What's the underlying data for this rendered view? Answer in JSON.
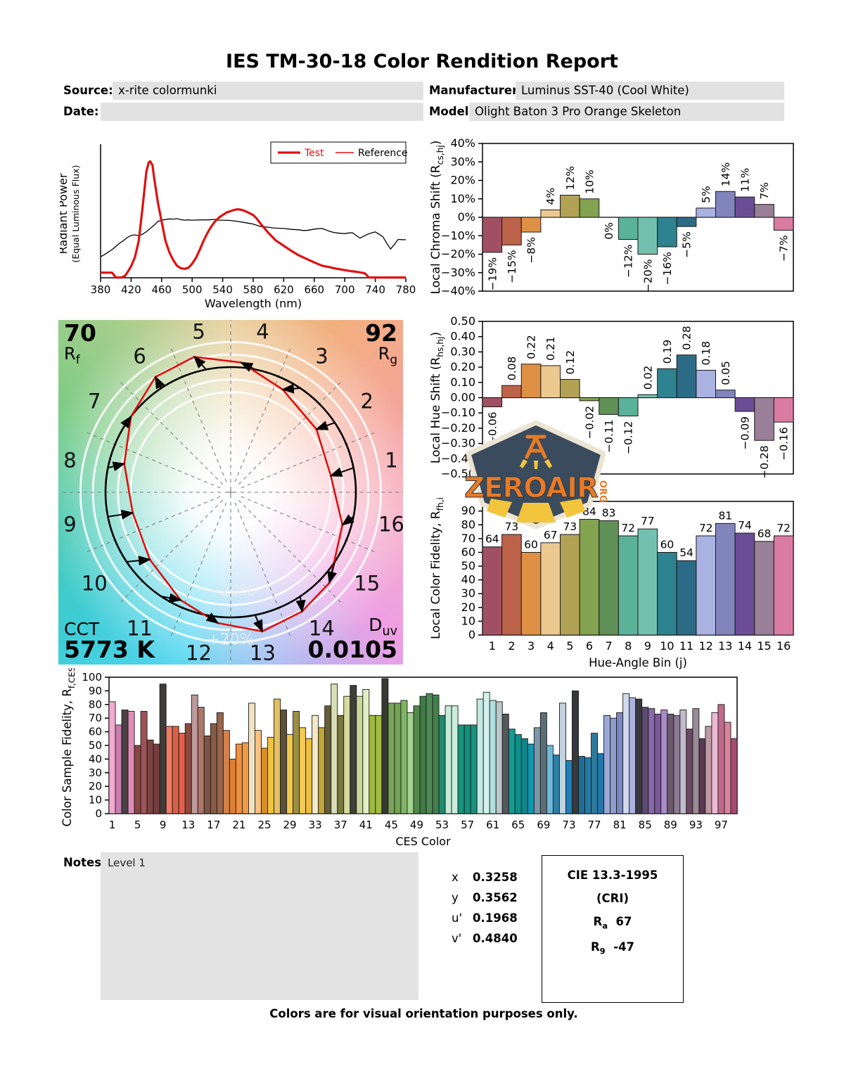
{
  "header": {
    "title": "IES TM-30-18 Color Rendition Report",
    "source_label": "Source:",
    "source_value": "x-rite colormunki",
    "date_label": "Date:",
    "date_value": "",
    "manufacturer_label": "Manufacturer:",
    "manufacturer_value": "Luminus SST-40 (Cool White)",
    "model_label": "Model:",
    "model_value": "Olight Baton 3 Pro Orange Skeleton"
  },
  "chart_data": {
    "spd": {
      "type": "line",
      "xlabel": "Wavelength (nm)",
      "ylabel": "Radiant Power",
      "ylabel_sub": "(Equal Luminous Flux)",
      "xlim": [
        380,
        780
      ],
      "ylim": [
        0,
        1
      ],
      "x_ticks": [
        380,
        420,
        460,
        500,
        540,
        580,
        620,
        660,
        700,
        740,
        780
      ],
      "legend": [
        {
          "name": "Test",
          "line_color": "#e01010",
          "line_width": 3.2,
          "text_color": "#e01010"
        },
        {
          "name": "Reference",
          "line_color": "#e01010",
          "line_width": 1.6,
          "text_color": "#000000"
        }
      ],
      "series": [
        {
          "name": "Test",
          "color": "#e01010",
          "width": 3.2,
          "points": [
            [
              380,
              0.04
            ],
            [
              395,
              0.04
            ],
            [
              400,
              0.002
            ],
            [
              407,
              0.002
            ],
            [
              412,
              0.015
            ],
            [
              416,
              0.05
            ],
            [
              420,
              0.09
            ],
            [
              425,
              0.16
            ],
            [
              430,
              0.29
            ],
            [
              435,
              0.55
            ],
            [
              440,
              0.83
            ],
            [
              443,
              0.9
            ],
            [
              445,
              0.91
            ],
            [
              448,
              0.88
            ],
            [
              450,
              0.79
            ],
            [
              455,
              0.59
            ],
            [
              460,
              0.44
            ],
            [
              465,
              0.29
            ],
            [
              470,
              0.2
            ],
            [
              475,
              0.14
            ],
            [
              480,
              0.095
            ],
            [
              485,
              0.075
            ],
            [
              490,
              0.07
            ],
            [
              495,
              0.078
            ],
            [
              500,
              0.11
            ],
            [
              505,
              0.155
            ],
            [
              510,
              0.22
            ],
            [
              515,
              0.29
            ],
            [
              520,
              0.35
            ],
            [
              525,
              0.4
            ],
            [
              530,
              0.44
            ],
            [
              535,
              0.47
            ],
            [
              540,
              0.49
            ],
            [
              545,
              0.51
            ],
            [
              550,
              0.52
            ],
            [
              555,
              0.53
            ],
            [
              560,
              0.535
            ],
            [
              565,
              0.53
            ],
            [
              570,
              0.52
            ],
            [
              575,
              0.505
            ],
            [
              580,
              0.49
            ],
            [
              585,
              0.46
            ],
            [
              590,
              0.42
            ],
            [
              595,
              0.385
            ],
            [
              600,
              0.35
            ],
            [
              610,
              0.29
            ],
            [
              620,
              0.25
            ],
            [
              630,
              0.21
            ],
            [
              640,
              0.175
            ],
            [
              650,
              0.147
            ],
            [
              660,
              0.12
            ],
            [
              670,
              0.095
            ],
            [
              680,
              0.083
            ],
            [
              690,
              0.07
            ],
            [
              700,
              0.06
            ],
            [
              710,
              0.05
            ],
            [
              715,
              0.047
            ],
            [
              720,
              0.042
            ],
            [
              726,
              0.036
            ],
            [
              729,
              0.02
            ],
            [
              731,
              0.003
            ],
            [
              740,
              0.002
            ],
            [
              780,
              0.002
            ]
          ]
        },
        {
          "name": "Reference",
          "color": "#000000",
          "width": 1.3,
          "points": [
            [
              380,
              0.165
            ],
            [
              385,
              0.18
            ],
            [
              390,
              0.2
            ],
            [
              395,
              0.22
            ],
            [
              400,
              0.245
            ],
            [
              405,
              0.27
            ],
            [
              410,
              0.29
            ],
            [
              415,
              0.315
            ],
            [
              420,
              0.33
            ],
            [
              425,
              0.335
            ],
            [
              430,
              0.328
            ],
            [
              435,
              0.34
            ],
            [
              440,
              0.36
            ],
            [
              445,
              0.385
            ],
            [
              450,
              0.41
            ],
            [
              455,
              0.44
            ],
            [
              460,
              0.45
            ],
            [
              465,
              0.455
            ],
            [
              470,
              0.46
            ],
            [
              475,
              0.458
            ],
            [
              480,
              0.462
            ],
            [
              485,
              0.455
            ],
            [
              490,
              0.45
            ],
            [
              495,
              0.452
            ],
            [
              500,
              0.45
            ],
            [
              510,
              0.452
            ],
            [
              520,
              0.452
            ],
            [
              530,
              0.456
            ],
            [
              535,
              0.45
            ],
            [
              540,
              0.45
            ],
            [
              550,
              0.448
            ],
            [
              560,
              0.44
            ],
            [
              570,
              0.43
            ],
            [
              575,
              0.425
            ],
            [
              580,
              0.42
            ],
            [
              590,
              0.4
            ],
            [
              600,
              0.395
            ],
            [
              605,
              0.39
            ],
            [
              610,
              0.388
            ],
            [
              620,
              0.385
            ],
            [
              630,
              0.378
            ],
            [
              640,
              0.375
            ],
            [
              645,
              0.37
            ],
            [
              650,
              0.37
            ],
            [
              655,
              0.375
            ],
            [
              660,
              0.38
            ],
            [
              665,
              0.383
            ],
            [
              670,
              0.385
            ],
            [
              675,
              0.375
            ],
            [
              680,
              0.363
            ],
            [
              685,
              0.355
            ],
            [
              690,
              0.35
            ],
            [
              695,
              0.347
            ],
            [
              700,
              0.345
            ],
            [
              705,
              0.35
            ],
            [
              710,
              0.352
            ],
            [
              715,
              0.33
            ],
            [
              720,
              0.31
            ],
            [
              725,
              0.325
            ],
            [
              730,
              0.34
            ],
            [
              735,
              0.35
            ],
            [
              740,
              0.358
            ],
            [
              745,
              0.34
            ],
            [
              750,
              0.32
            ],
            [
              755,
              0.27
            ],
            [
              760,
              0.224
            ],
            [
              765,
              0.26
            ],
            [
              770,
              0.3
            ],
            [
              775,
              0.298
            ],
            [
              780,
              0.297
            ]
          ]
        }
      ]
    },
    "chroma_shift": {
      "type": "bar",
      "ylabel_parts": [
        {
          "t": "Local Chroma Shift (R"
        },
        {
          "t": "cs,hj",
          "sub": true
        },
        {
          "t": ")"
        }
      ],
      "ymin": -40,
      "ymax": 40,
      "ytick": 10,
      "tick_suffix": "%",
      "value_suffix": "%",
      "categories": [
        1,
        2,
        3,
        4,
        5,
        6,
        7,
        8,
        9,
        10,
        11,
        12,
        13,
        14,
        15,
        16
      ],
      "values": [
        -19,
        -15,
        -8,
        4,
        12,
        10,
        0,
        -12,
        -20,
        -16,
        -5,
        5,
        14,
        11,
        7,
        -7
      ],
      "colors": [
        "#A05062",
        "#BD6349",
        "#DE9144",
        "#ECC98F",
        "#B2A255",
        "#83A350",
        "#5F9156",
        "#5AB298",
        "#74C0AE",
        "#2F8290",
        "#2C6B85",
        "#A9B2E1",
        "#8285BC",
        "#6B4D96",
        "#9A7F99",
        "#DA7BA2"
      ]
    },
    "hue_shift": {
      "type": "bar",
      "ylabel_parts": [
        {
          "t": "Local Hue Shift (R"
        },
        {
          "t": "hs,hj",
          "sub": true
        },
        {
          "t": ")"
        }
      ],
      "ymin": -0.5,
      "ymax": 0.5,
      "ytick": 0.1,
      "decimals": 2,
      "categories": [
        1,
        2,
        3,
        4,
        5,
        6,
        7,
        8,
        9,
        10,
        11,
        12,
        13,
        14,
        15,
        16
      ],
      "values": [
        -0.06,
        0.08,
        0.22,
        0.21,
        0.12,
        -0.02,
        -0.11,
        -0.12,
        0.02,
        0.19,
        0.28,
        0.18,
        0.05,
        -0.09,
        -0.28,
        -0.16
      ],
      "colors": [
        "#A05062",
        "#BD6349",
        "#DE9144",
        "#ECC98F",
        "#B2A255",
        "#83A350",
        "#5F9156",
        "#5AB298",
        "#74C0AE",
        "#2F8290",
        "#2C6B85",
        "#A9B2E1",
        "#8285BC",
        "#6B4D96",
        "#9A7F99",
        "#DA7BA2"
      ]
    },
    "local_fidelity": {
      "type": "bar",
      "ylabel_parts": [
        {
          "t": "Local Color Fidelity, R"
        },
        {
          "t": "fh,i",
          "sub": true
        }
      ],
      "xlabel": "Hue-Angle Bin (j)",
      "ymin": 0,
      "ymax": 90,
      "categories": [
        1,
        2,
        3,
        4,
        5,
        6,
        7,
        8,
        9,
        10,
        11,
        12,
        13,
        14,
        15,
        16
      ],
      "values": [
        64,
        73,
        60,
        67,
        73,
        84,
        83,
        72,
        77,
        60,
        54,
        72,
        81,
        74,
        68,
        72
      ],
      "colors": [
        "#A05062",
        "#BD6349",
        "#DE9144",
        "#ECC98F",
        "#B2A255",
        "#83A350",
        "#5F9156",
        "#5AB298",
        "#74C0AE",
        "#2F8290",
        "#2C6B85",
        "#A9B2E1",
        "#8285BC",
        "#6B4D96",
        "#9A7F99",
        "#DA7BA2"
      ]
    },
    "ces_fidelity": {
      "type": "bar",
      "ylabel_parts": [
        {
          "t": "Color Sample Fidelity, R"
        },
        {
          "t": "f,CESi",
          "sub": true
        }
      ],
      "xlabel": "CES Color",
      "ymin": 0,
      "ymax": 100,
      "ytick": 10,
      "xtick_step": 4,
      "values": [
        82,
        65,
        76,
        75,
        50,
        75,
        54,
        51,
        95,
        64,
        64,
        59,
        66,
        87,
        78,
        57,
        66,
        74,
        61,
        40,
        51,
        52,
        81,
        61,
        48,
        56,
        84,
        76,
        58,
        75,
        63,
        55,
        72,
        63,
        79,
        95,
        72,
        86,
        94,
        86,
        91,
        72,
        72,
        99,
        81,
        81,
        83,
        74,
        79,
        86,
        88,
        87,
        72,
        79,
        79,
        65,
        65,
        65,
        84,
        89,
        83,
        82,
        73,
        62,
        58,
        55,
        51,
        63,
        74,
        50,
        43,
        81,
        39,
        90,
        42,
        41,
        59,
        44,
        72,
        70,
        74,
        88,
        85,
        84,
        78,
        77,
        73,
        76,
        73,
        72,
        76,
        62,
        77,
        55,
        64,
        74,
        80,
        67,
        55
      ],
      "colors": [
        "#F4ABD0",
        "#C77FAE",
        "#4B4044",
        "#E18CB8",
        "#8A4545",
        "#9D5456",
        "#7C4343",
        "#763E3E",
        "#3F3C3A",
        "#F07A62",
        "#DA6048",
        "#E2604A",
        "#8C4A42",
        "#BD9A9B",
        "#AE7668",
        "#7D5443",
        "#8A5A45",
        "#97664B",
        "#D2814A",
        "#DF8030",
        "#F09140",
        "#F29A42",
        "#F2E3C2",
        "#F8C183",
        "#D89127",
        "#F1C242",
        "#E3C061",
        "#5C5138",
        "#F3C94C",
        "#9C8F45",
        "#F3CB55",
        "#EFBE3D",
        "#F4E9C8",
        "#C3A437",
        "#655D35",
        "#D8DEB6",
        "#7A7641",
        "#D6DB9E",
        "#3E4038",
        "#C9D79A",
        "#E2EFC3",
        "#9FB93F",
        "#A2BC42",
        "#35392F",
        "#79A559",
        "#73A355",
        "#7FB565",
        "#A4D292",
        "#53874C",
        "#3E7B46",
        "#4E8B54",
        "#42804A",
        "#1F8A6E",
        "#C7EBD8",
        "#C9EDDA",
        "#16937E",
        "#13917C",
        "#17937E",
        "#C4E9E4",
        "#D4F0EC",
        "#AFE0DD",
        "#B9C9C7",
        "#54585A",
        "#129C92",
        "#0E8F8C",
        "#0F8589",
        "#0D98B4",
        "#7A98A8",
        "#5A6E78",
        "#6FB9DC",
        "#2E7FA8",
        "#C2D3DE",
        "#1F7FB8",
        "#35393D",
        "#1E6E96",
        "#2579A4",
        "#2E7A9A",
        "#2276A8",
        "#9AA8D8",
        "#8F9CD0",
        "#7A88C4",
        "#D2D9EE",
        "#A9B4E2",
        "#393A40",
        "#5C4A6E",
        "#8A68AE",
        "#7A589A",
        "#A98BC9",
        "#6B5A6B",
        "#8C7A93",
        "#C2BACB",
        "#6A4A63",
        "#9B8B97",
        "#5A3A52",
        "#BD9AA3",
        "#EBBAD4",
        "#C06A8B",
        "#DA849B",
        "#A84B72"
      ]
    }
  },
  "cvg": {
    "rf_value": "70",
    "rf_label": {
      "main": "R",
      "sub": "f"
    },
    "rg_value": "92",
    "rg_label": {
      "main": "R",
      "sub": "g"
    },
    "cct_label": "CCT",
    "cct_value": "5773 K",
    "duv_label": {
      "main": "D",
      "sub": "uv"
    },
    "duv_value": "0.0105",
    "ring_inner": "−20%",
    "ring_outer": "+20%",
    "bin_labels": [
      "1",
      "2",
      "3",
      "4",
      "5",
      "6",
      "7",
      "8",
      "9",
      "10",
      "11",
      "12",
      "13",
      "14",
      "15",
      "16"
    ],
    "ref_color": "#000000",
    "test_color": "#e01010",
    "bg_hues": [
      "#E7CC96",
      "#F2AF7E",
      "#F5A49B",
      "#F7AFC6",
      "#EE9FE3",
      "#A9BAF2",
      "#52D5F0",
      "#3ECDD6",
      "#46C8AD",
      "#7BCB85",
      "#A8CE8D",
      "#E7CC96"
    ]
  },
  "logo": {
    "name": "ZEROAIR",
    "org": "ORG",
    "colors": {
      "badge": "#3B4B5E",
      "border": "#ECE4D2",
      "orange": "#E87A25",
      "yellow": "#F3C53D"
    }
  },
  "notes": {
    "label": "Notes:",
    "value": "Level 1"
  },
  "chromaticity": {
    "rows": [
      {
        "label": "x",
        "value": "0.3258"
      },
      {
        "label": "y",
        "value": "0.3562"
      },
      {
        "label": "u'",
        "value": "0.1968"
      },
      {
        "label": "v'",
        "value": "0.4840"
      }
    ]
  },
  "cri": {
    "title": "CIE 13.3-1995",
    "subtitle": "(CRI)",
    "ra_label": {
      "main": "R",
      "sub": "a"
    },
    "ra_value": "67",
    "r9_label": {
      "main": "R",
      "sub": "9"
    },
    "r9_value": "-47"
  },
  "footer": "Colors are for visual orientation purposes only."
}
